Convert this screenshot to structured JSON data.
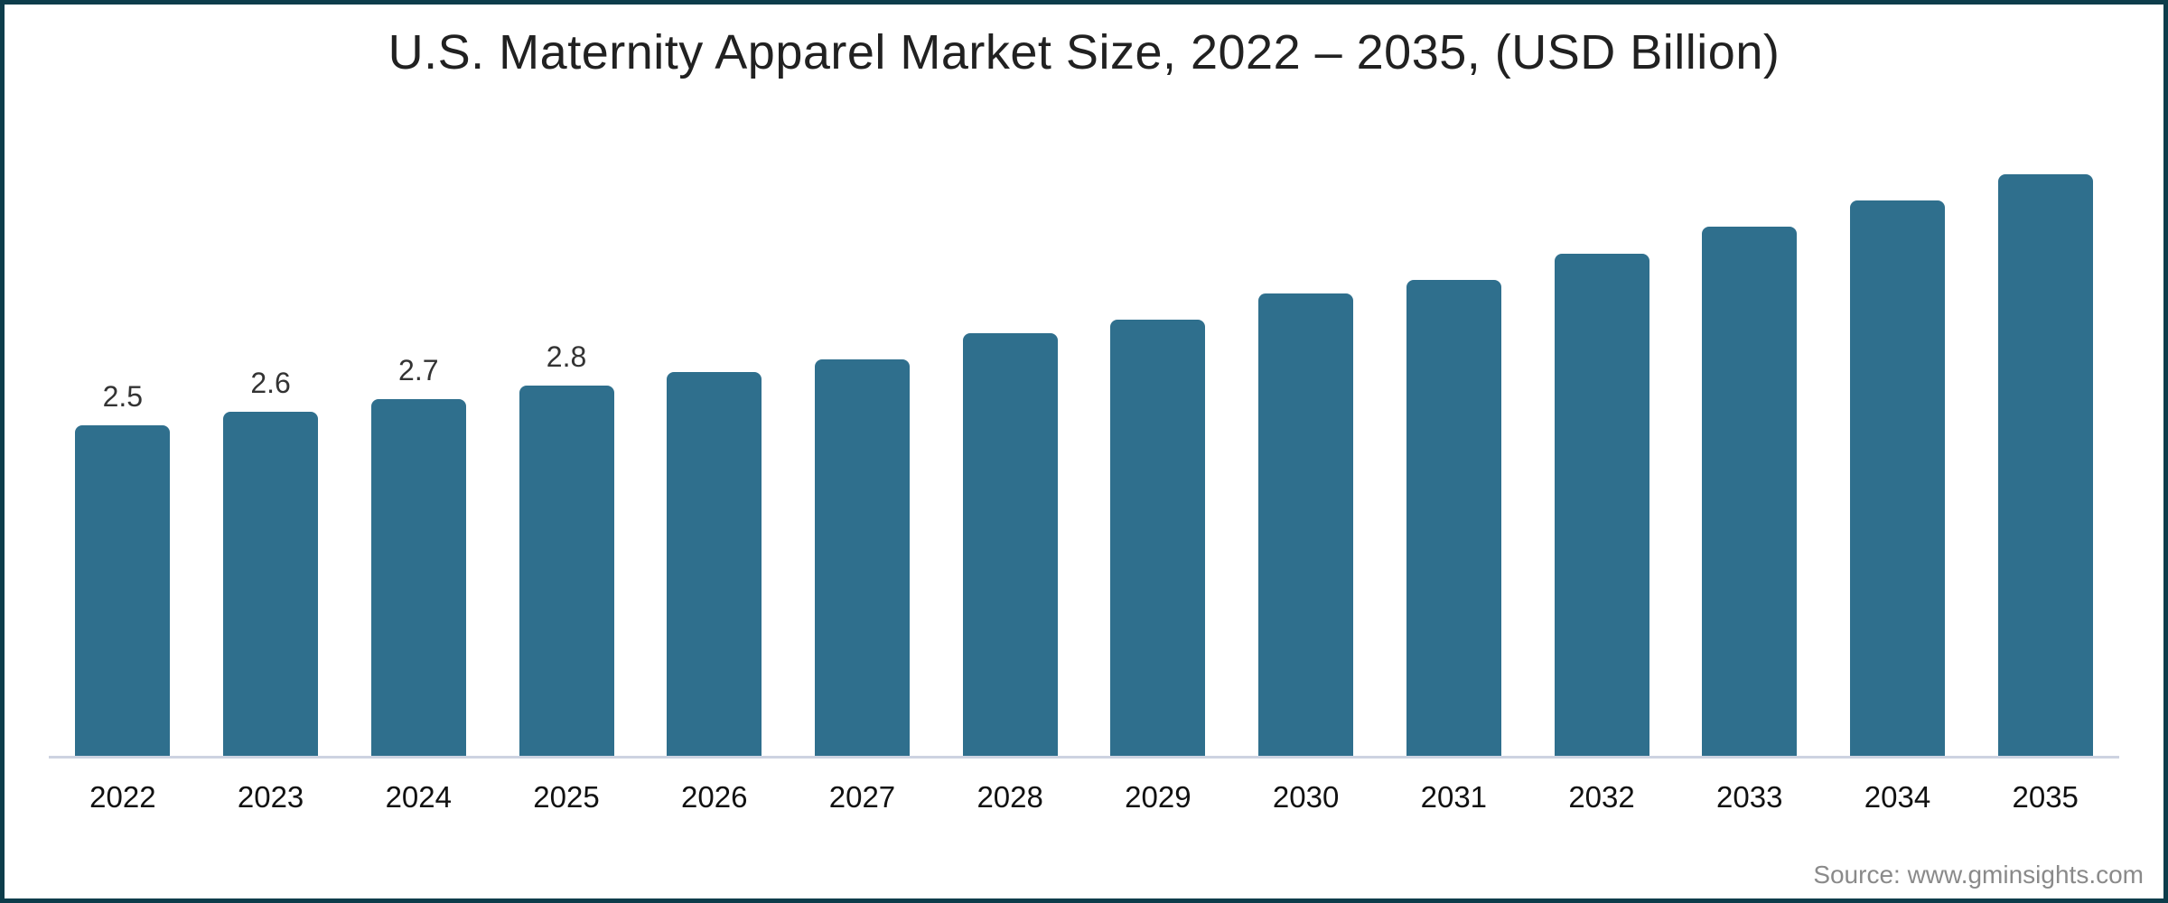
{
  "title": "U.S. Maternity Apparel Market Size, 2022 – 2035, (USD Billion)",
  "source": "Source: www.gminsights.com",
  "colors": {
    "bar": "#2F6F8D",
    "frame_border": "#0d3d4b",
    "axis_line": "#cdd3e1",
    "title_text": "#212121",
    "axis_text": "#111111",
    "label_text": "#333333",
    "source_text": "#8a8a8a",
    "background": "#ffffff"
  },
  "chart_data": {
    "type": "bar",
    "title": "U.S. Maternity Apparel Market Size, 2022 – 2035, (USD Billion)",
    "categories": [
      "2022",
      "2023",
      "2024",
      "2025",
      "2026",
      "2027",
      "2028",
      "2029",
      "2030",
      "2031",
      "2032",
      "2033",
      "2034",
      "2035"
    ],
    "values": [
      2.5,
      2.6,
      2.7,
      2.8,
      2.9,
      3.0,
      3.2,
      3.3,
      3.5,
      3.6,
      3.8,
      4.0,
      4.2,
      4.4
    ],
    "data_labels": [
      "2.5",
      "2.6",
      "2.7",
      "2.8",
      "",
      "",
      "",
      "",
      "",
      "",
      "",
      "",
      "",
      ""
    ],
    "xlabel": "",
    "ylabel": "",
    "ylim": [
      0,
      4.65
    ],
    "grid": false,
    "legend": false,
    "bar_color": "#2F6F8D"
  }
}
